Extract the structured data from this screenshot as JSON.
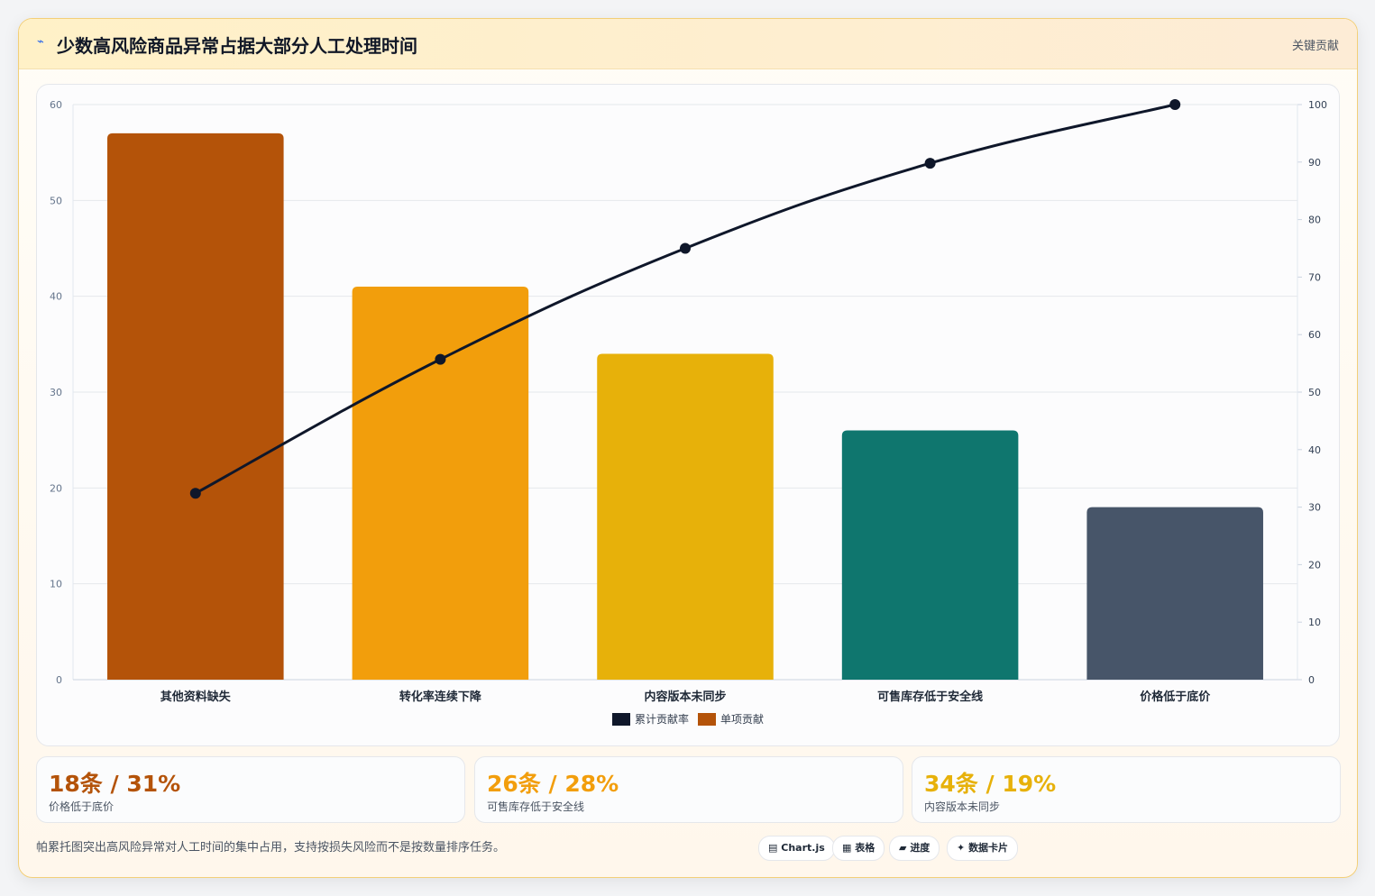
{
  "header": {
    "icon": "⌁",
    "title": "少数高风险商品异常占据大部分人工处理时间",
    "tag": "关键贡献"
  },
  "chart_data": {
    "type": "bar",
    "categories": [
      "其他资料缺失",
      "转化率连续下降",
      "内容版本未同步",
      "可售库存低于安全线",
      "价格低于底价"
    ],
    "series": [
      {
        "name": "单项贡献",
        "type": "bar",
        "axis": "left",
        "values": [
          57,
          41,
          34,
          26,
          18
        ],
        "colors": [
          "#b45309",
          "#f29e0c",
          "#e7b10a",
          "#0f766e",
          "#475569"
        ]
      },
      {
        "name": "累计贡献率",
        "type": "line",
        "axis": "right",
        "values": [
          32.4,
          55.7,
          75.0,
          89.8,
          100
        ],
        "color": "#0f172a"
      }
    ],
    "ylim": [
      0,
      60
    ],
    "yticks": [
      0,
      10,
      20,
      30,
      40,
      50,
      60
    ],
    "y2lim": [
      0,
      100
    ],
    "y2ticks": [
      0,
      10,
      20,
      30,
      40,
      50,
      60,
      70,
      80,
      90,
      100
    ],
    "legend": [
      {
        "label": "累计贡献率",
        "color": "#0f172a"
      },
      {
        "label": "单项贡献",
        "color": "#b45309"
      }
    ],
    "legend_position": "bottom",
    "grid": true
  },
  "stats": [
    {
      "value": "18条 / 31%",
      "label": "价格低于底价",
      "color": "#b45309"
    },
    {
      "value": "26条 / 28%",
      "label": "可售库存低于安全线",
      "color": "#f29e0c"
    },
    {
      "value": "34条 / 19%",
      "label": "内容版本未同步",
      "color": "#e7b10a"
    }
  ],
  "footer": {
    "note": "帕累托图突出高风险异常对人工时间的集中占用，支持按损失风险而不是按数量排序任务。",
    "chips": [
      {
        "icon": "▤",
        "label": "Chart.js"
      },
      {
        "icon": "▦",
        "label": "表格"
      },
      {
        "icon": "▰",
        "label": "进度"
      },
      {
        "icon": "✦",
        "label": "数据卡片"
      }
    ]
  }
}
